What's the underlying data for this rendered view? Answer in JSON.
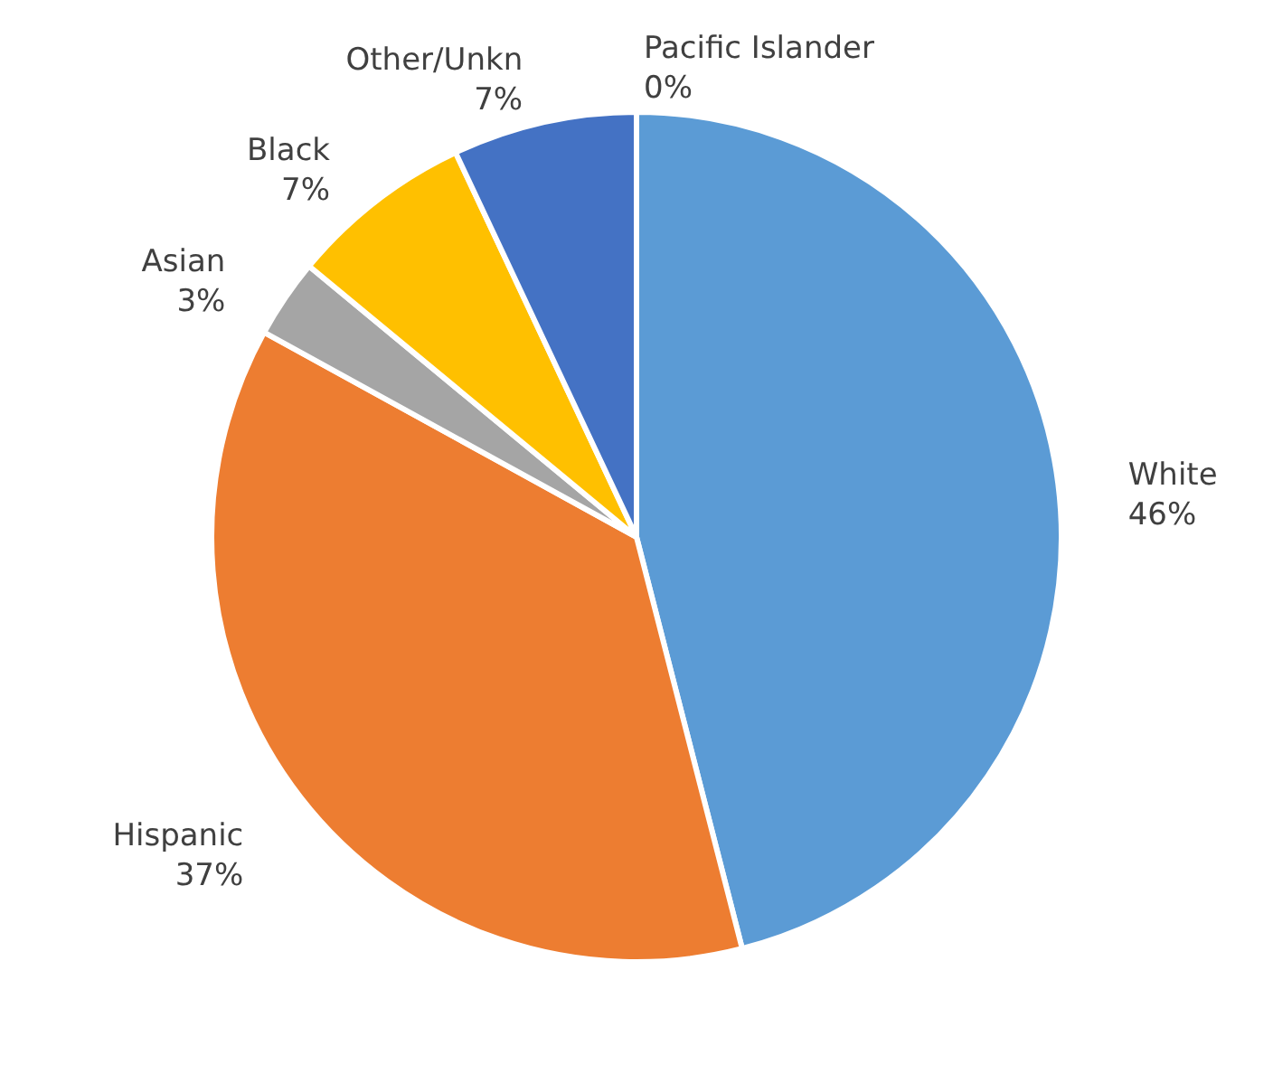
{
  "chart_data": {
    "type": "pie",
    "categories": [
      "White",
      "Hispanic",
      "Asian",
      "Black",
      "Other/Unkn",
      "Pacific Islander"
    ],
    "values": [
      46,
      37,
      3,
      7,
      7,
      0
    ],
    "value_labels": [
      "46%",
      "37%",
      "3%",
      "7%",
      "7%",
      "0%"
    ],
    "colors": [
      "#5b9bd5",
      "#ed7d31",
      "#a5a5a5",
      "#ffc000",
      "#4472c4",
      "#70ad47"
    ]
  }
}
